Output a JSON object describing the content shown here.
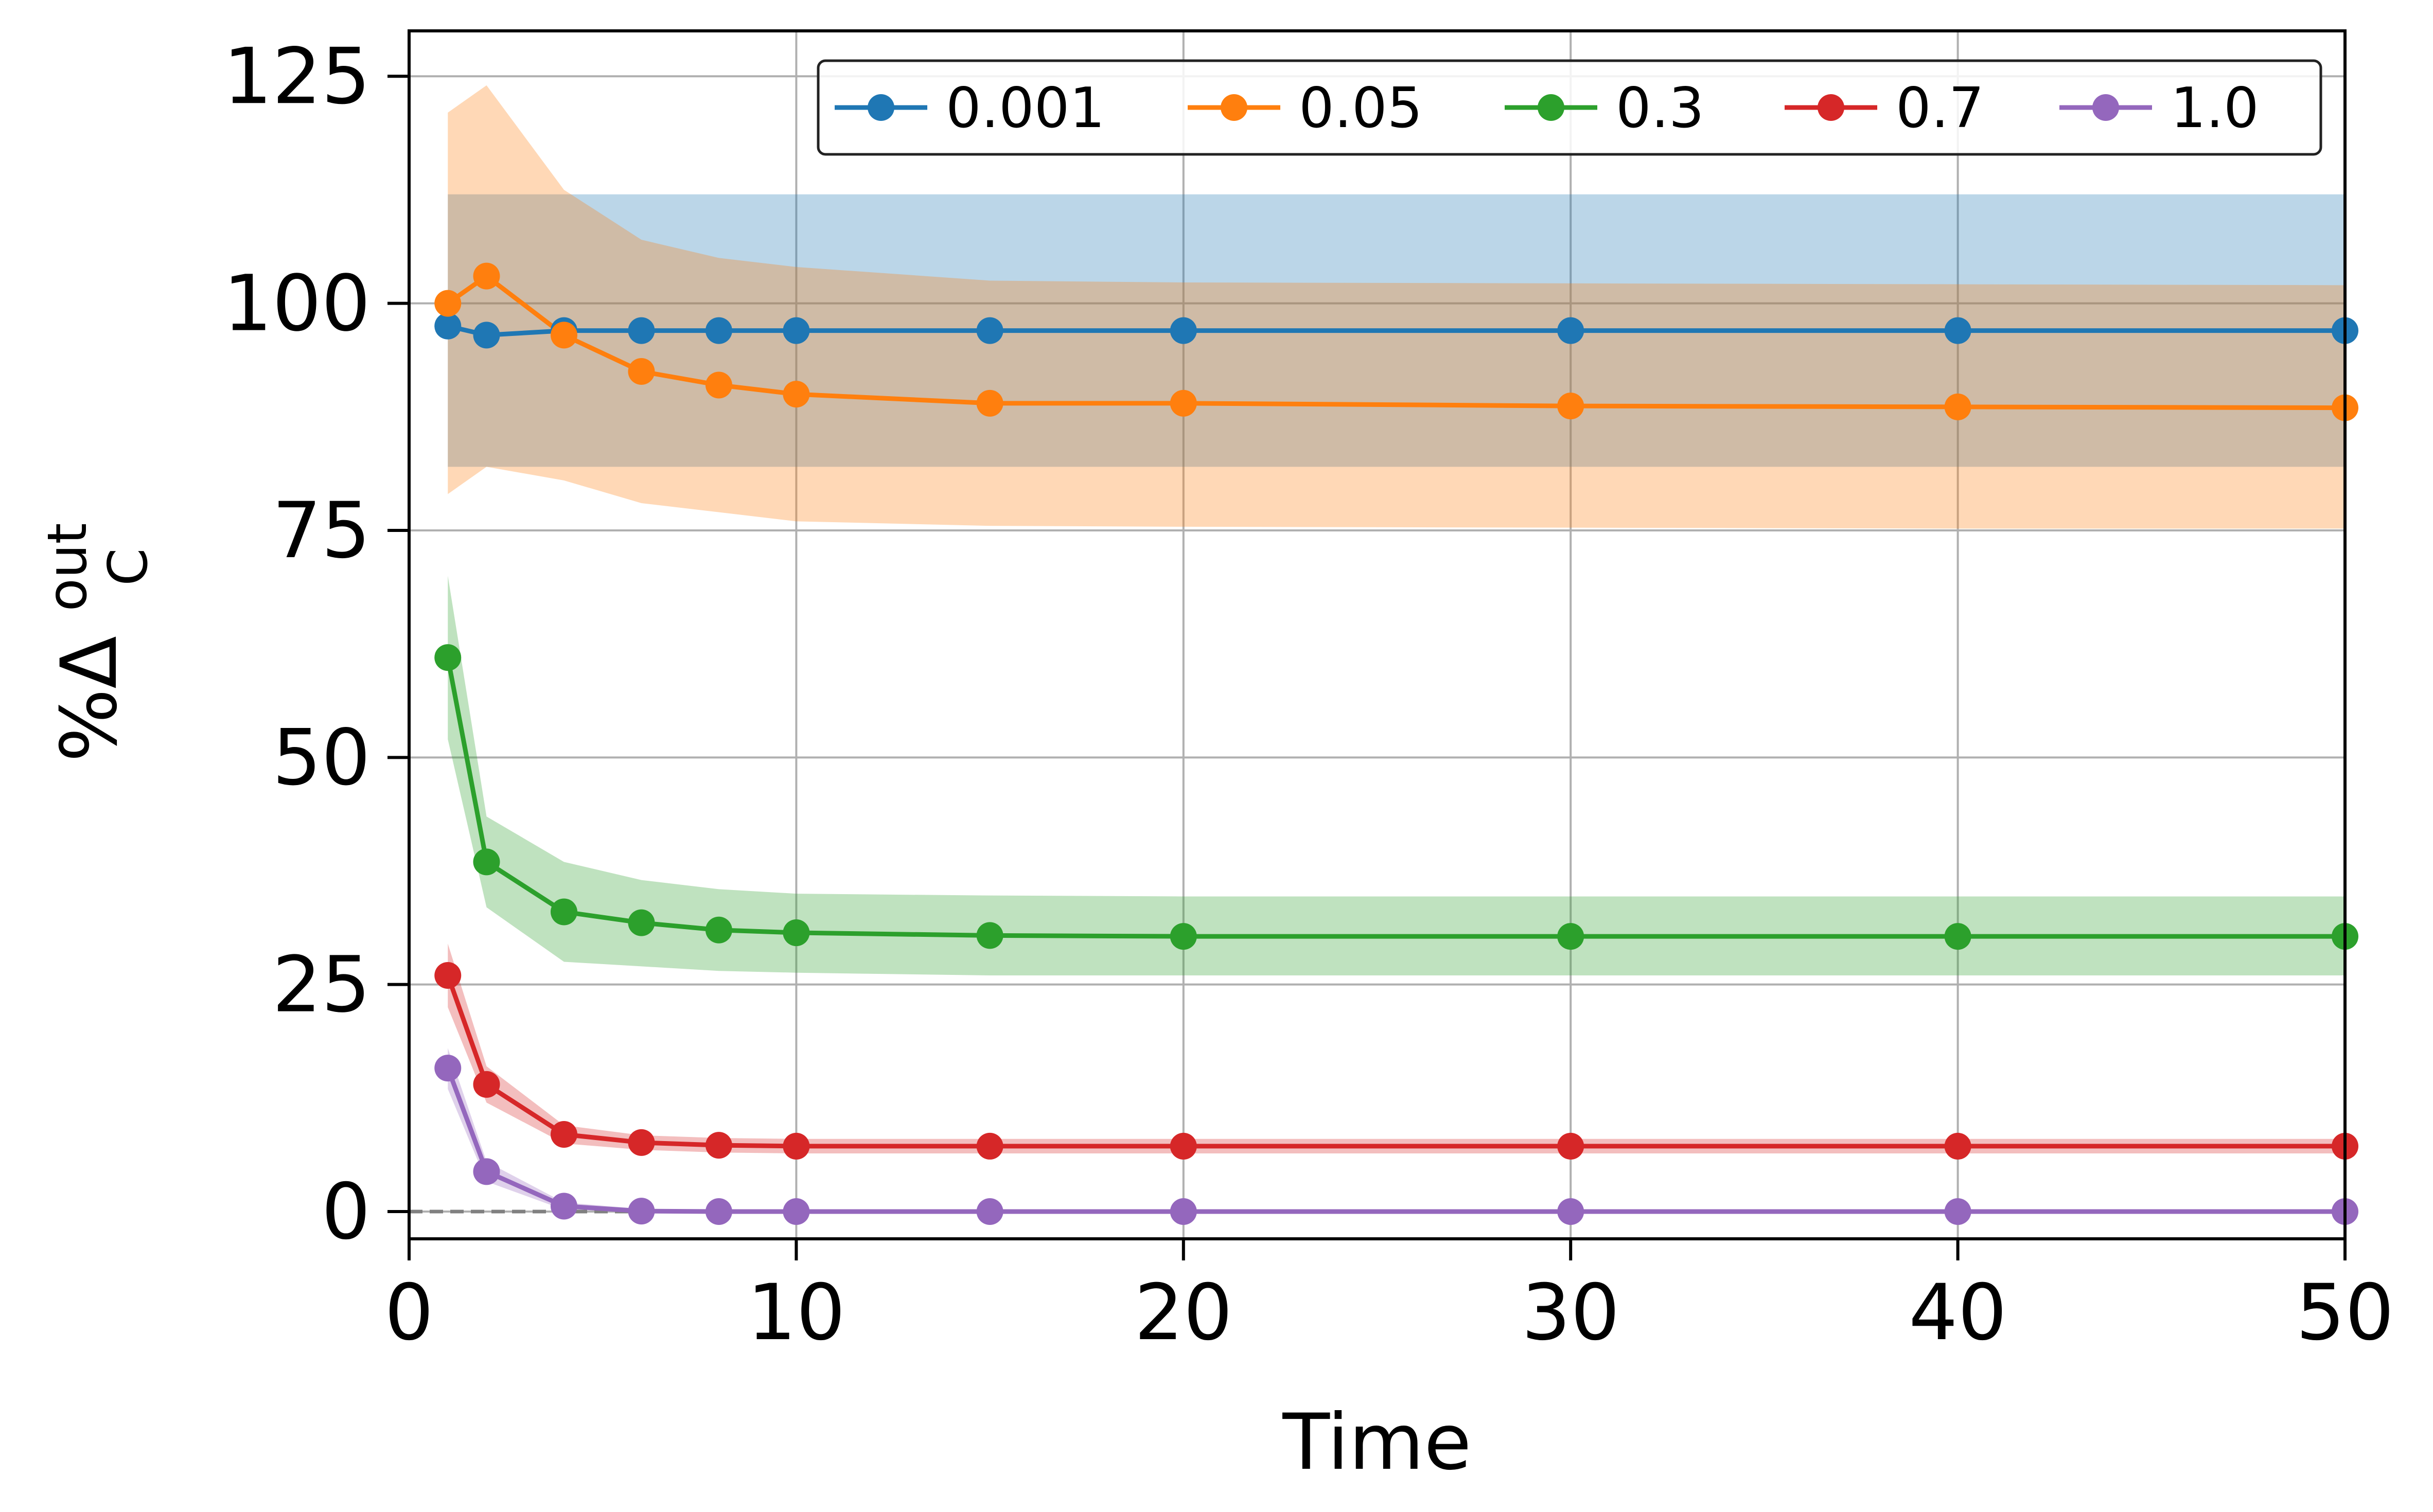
{
  "chart_data": {
    "type": "line",
    "xlabel": "Time",
    "ylabel_main": "%Δ",
    "ylabel_sup": "out",
    "ylabel_sub": "C",
    "xlim": [
      0,
      50
    ],
    "ylim": [
      -3,
      130
    ],
    "x_ticks": [
      0,
      10,
      20,
      30,
      40,
      50
    ],
    "y_ticks": [
      0,
      25,
      50,
      75,
      100,
      125
    ],
    "grid": true,
    "legend_position": "top-right",
    "legend_columns": 5,
    "reference_line": {
      "y": 0,
      "style": "dashed",
      "color": "#808080"
    },
    "x": [
      1,
      2,
      4,
      6,
      8,
      10,
      15,
      20,
      30,
      40,
      50
    ],
    "series": [
      {
        "name": "0.001",
        "color": "#1f77b4",
        "values": [
          97.5,
          96.5,
          97,
          97,
          97,
          97,
          97,
          97,
          97,
          97,
          97
        ],
        "band_upper": [
          112,
          112,
          112,
          112,
          112,
          112,
          112,
          112,
          112,
          112,
          112
        ],
        "band_lower": [
          82,
          82,
          82,
          82,
          82,
          82,
          82,
          82,
          82,
          82,
          82
        ]
      },
      {
        "name": "0.05",
        "color": "#ff7f0e",
        "values": [
          100,
          103,
          96.5,
          92.5,
          91,
          90,
          89,
          89,
          88.7,
          88.6,
          88.5
        ],
        "band_upper": [
          121,
          124,
          112.5,
          107,
          105,
          104,
          102.5,
          102.3,
          102.2,
          102.1,
          102
        ],
        "band_lower": [
          79,
          82,
          80.5,
          78,
          77,
          76,
          75.5,
          75.4,
          75.3,
          75.2,
          75.2
        ]
      },
      {
        "name": "0.3",
        "color": "#2ca02c",
        "values": [
          61,
          38.5,
          33,
          31.8,
          31,
          30.7,
          30.4,
          30.3,
          30.3,
          30.3,
          30.3
        ],
        "band_upper": [
          70,
          43.5,
          38.5,
          36.5,
          35.5,
          35,
          34.8,
          34.7,
          34.7,
          34.7,
          34.7
        ],
        "band_lower": [
          52,
          33.5,
          27.5,
          27,
          26.5,
          26.3,
          26,
          26,
          26,
          26,
          26
        ]
      },
      {
        "name": "0.7",
        "color": "#d62728",
        "values": [
          26,
          14,
          8.5,
          7.6,
          7.3,
          7.2,
          7.2,
          7.2,
          7.2,
          7.2,
          7.2
        ],
        "band_upper": [
          29.5,
          16,
          9.5,
          8.4,
          8.1,
          8,
          8,
          8,
          8,
          8,
          8
        ],
        "band_lower": [
          22.5,
          12,
          7.5,
          6.8,
          6.5,
          6.4,
          6.4,
          6.4,
          6.4,
          6.4,
          6.4
        ]
      },
      {
        "name": "1.0",
        "color": "#9467bd",
        "values": [
          15.8,
          4.4,
          0.6,
          0.05,
          0,
          0,
          0,
          0,
          0,
          0,
          0
        ],
        "band_upper": [
          18,
          5.5,
          1,
          0.3,
          0.1,
          0.1,
          0.1,
          0.1,
          0.1,
          0.1,
          0.1
        ],
        "band_lower": [
          13.5,
          3.3,
          0.2,
          0,
          0,
          0,
          0,
          0,
          0,
          0,
          0
        ]
      }
    ]
  }
}
